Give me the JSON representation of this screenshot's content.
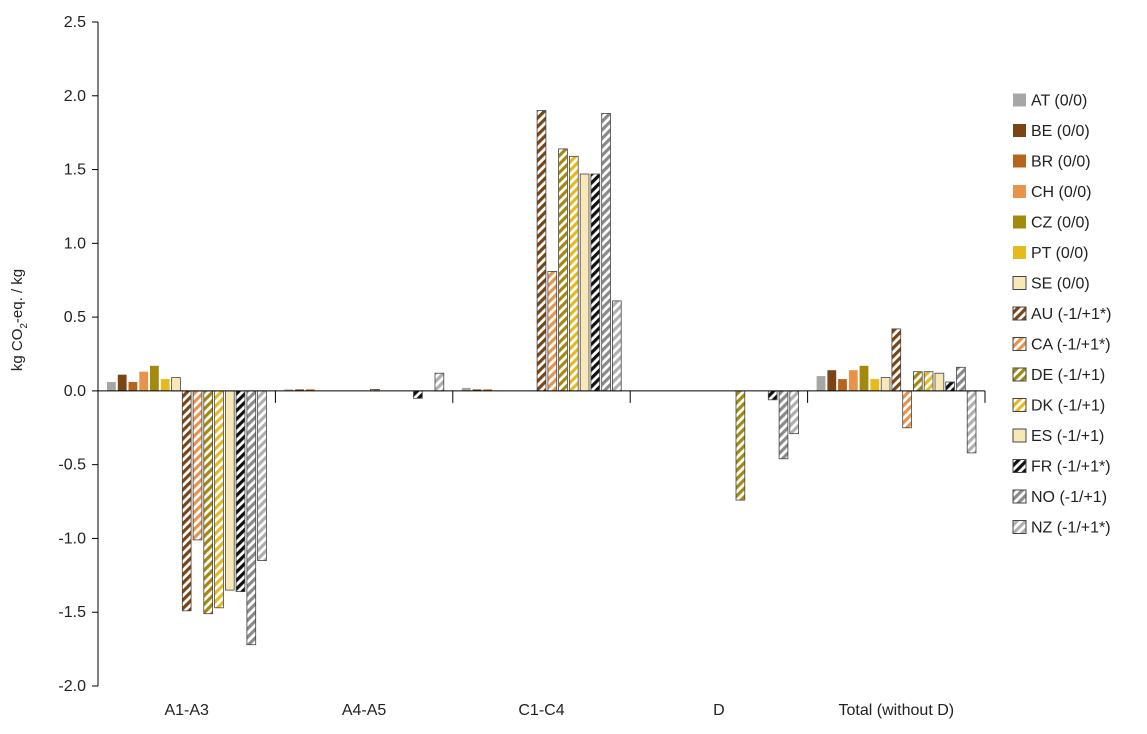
{
  "chart_data": {
    "type": "bar",
    "title": "",
    "ylabel_parts": [
      "kg CO",
      "2",
      "-eq. / kg"
    ],
    "ylim": [
      -2.0,
      2.5
    ],
    "yticks": [
      "-2.0",
      "-1.5",
      "-1.0",
      "-0.5",
      "0.0",
      "0.5",
      "1.0",
      "1.5",
      "2.0",
      "2.5"
    ],
    "grid": false,
    "legend_position": "right",
    "categories": [
      "A1-A3",
      "A4-A5",
      "C1-C4",
      "D",
      "Total (without D)"
    ],
    "series": [
      {
        "name": "AT (0/0)",
        "color": "#a6a6a6",
        "hatch": false,
        "values": [
          0.06,
          0.01,
          0.02,
          0.0,
          0.1
        ]
      },
      {
        "name": "BE (0/0)",
        "color": "#7b4414",
        "hatch": false,
        "values": [
          0.11,
          0.01,
          0.01,
          0.0,
          0.14
        ]
      },
      {
        "name": "BR (0/0)",
        "color": "#b5651d",
        "hatch": false,
        "values": [
          0.06,
          0.01,
          0.01,
          0.0,
          0.08
        ]
      },
      {
        "name": "CH (0/0)",
        "color": "#e8924a",
        "hatch": false,
        "values": [
          0.13,
          0.0,
          0.0,
          0.0,
          0.14
        ]
      },
      {
        "name": "CZ (0/0)",
        "color": "#a38a0e",
        "hatch": false,
        "values": [
          0.17,
          0.0,
          0.0,
          0.0,
          0.17
        ]
      },
      {
        "name": "PT (0/0)",
        "color": "#e6b91e",
        "hatch": false,
        "values": [
          0.08,
          0.0,
          0.0,
          0.0,
          0.08
        ]
      },
      {
        "name": "SE (0/0)",
        "color": "#f8e8b8",
        "hatch": false,
        "values": [
          0.09,
          0.0,
          0.0,
          0.0,
          0.09
        ]
      },
      {
        "name": "AU (-1/+1*)",
        "color": "#7b4414",
        "hatch": true,
        "values": [
          -1.49,
          0.0,
          1.9,
          0.0,
          0.42
        ]
      },
      {
        "name": "CA (-1/+1*)",
        "color": "#e8924a",
        "hatch": true,
        "values": [
          -1.01,
          0.01,
          0.81,
          0.0,
          -0.25
        ]
      },
      {
        "name": "DE (-1/+1)",
        "color": "#a38a0e",
        "hatch": true,
        "values": [
          -1.51,
          0.0,
          1.64,
          -0.74,
          0.13
        ]
      },
      {
        "name": "DK (-1/+1)",
        "color": "#e6b91e",
        "hatch": true,
        "values": [
          -1.47,
          0.0,
          1.59,
          0.0,
          0.13
        ]
      },
      {
        "name": "ES (-1/+1)",
        "color": "#f8e8b8",
        "hatch": false,
        "values": [
          -1.35,
          0.0,
          1.47,
          0.0,
          0.12
        ]
      },
      {
        "name": "FR (-1/+1*)",
        "color": "#111111",
        "hatch": true,
        "values": [
          -1.36,
          -0.05,
          1.47,
          -0.06,
          0.06
        ]
      },
      {
        "name": "NO (-1/+1)",
        "color": "#8a8a8a",
        "hatch": true,
        "values": [
          -1.72,
          0.0,
          1.88,
          -0.46,
          0.16
        ]
      },
      {
        "name": "NZ (-1/+1*)",
        "color": "#b0b0b0",
        "hatch": true,
        "values": [
          -1.15,
          0.12,
          0.61,
          -0.29,
          -0.42
        ]
      }
    ]
  }
}
